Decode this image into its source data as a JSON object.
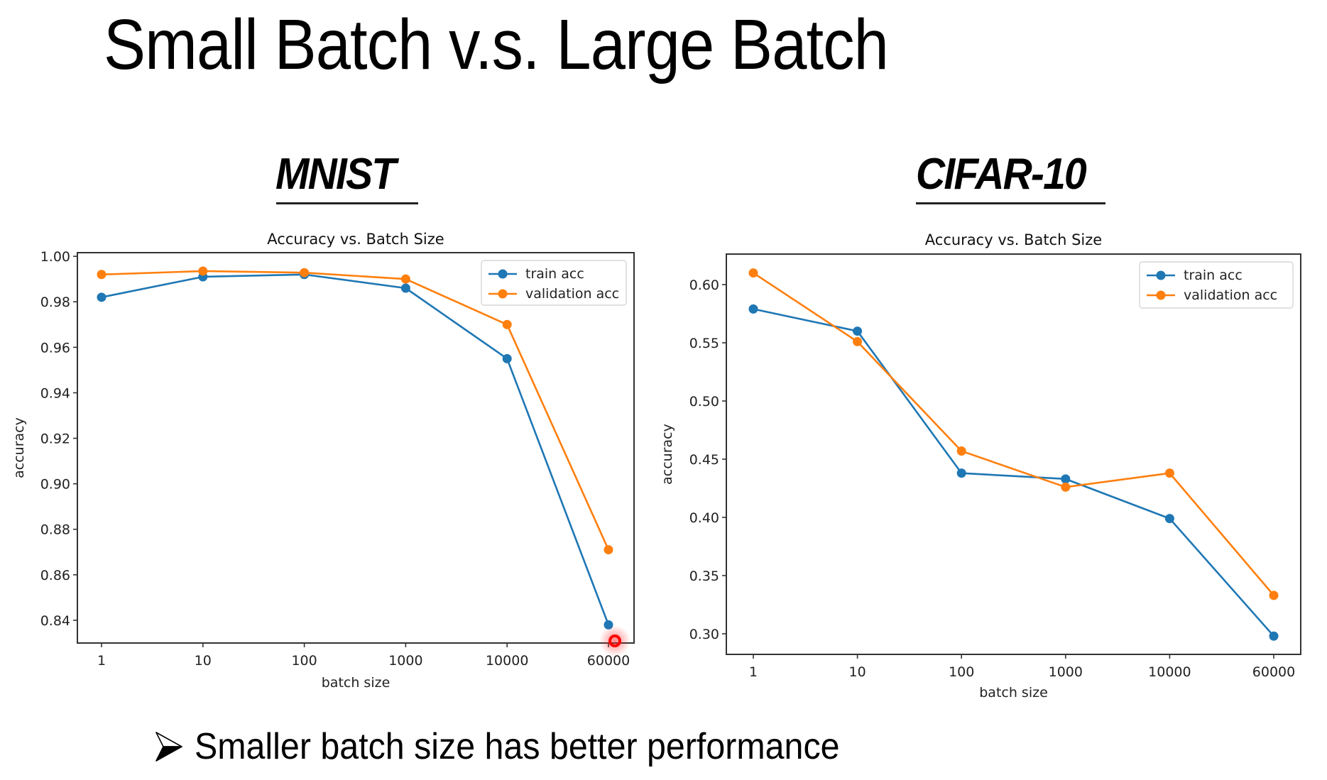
{
  "slide": {
    "title": "Small Batch v.s. Large Batch",
    "bullet": "Smaller batch size has better performance",
    "bullet_icon": "arrow-bullet-icon"
  },
  "headings": {
    "mnist": "MNIST",
    "cifar": "CIFAR-10"
  },
  "colors": {
    "train": "#1f77b4",
    "validation": "#ff7f0e",
    "axis": "#333333",
    "cursor": "#ff0000"
  },
  "chart_data": [
    {
      "type": "line",
      "dataset": "MNIST",
      "title": "Accuracy vs. Batch Size",
      "xlabel": "batch size",
      "ylabel": "accuracy",
      "categories": [
        "1",
        "10",
        "100",
        "1000",
        "10000",
        "60000"
      ],
      "ylim": [
        0.83,
        1.0016
      ],
      "yticks": [
        0.84,
        0.86,
        0.88,
        0.9,
        0.92,
        0.94,
        0.96,
        0.98,
        1.0
      ],
      "ytick_labels": [
        "0.84",
        "0.86",
        "0.88",
        "0.90",
        "0.92",
        "0.94",
        "0.96",
        "0.98",
        "1.00"
      ],
      "legend_position": "upper-right",
      "grid": false,
      "series": [
        {
          "name": "train acc",
          "color": "#1f77b4",
          "values": [
            0.982,
            0.991,
            0.992,
            0.986,
            0.955,
            0.838
          ]
        },
        {
          "name": "validation acc",
          "color": "#ff7f0e",
          "values": [
            0.992,
            0.9935,
            0.9928,
            0.99,
            0.97,
            0.871
          ]
        }
      ]
    },
    {
      "type": "line",
      "dataset": "CIFAR-10",
      "title": "Accuracy vs. Batch Size",
      "xlabel": "batch size",
      "ylabel": "accuracy",
      "categories": [
        "1",
        "10",
        "100",
        "1000",
        "10000",
        "60000"
      ],
      "ylim": [
        0.2823,
        0.6262
      ],
      "yticks": [
        0.3,
        0.35,
        0.4,
        0.45,
        0.5,
        0.55,
        0.6
      ],
      "ytick_labels": [
        "0.30",
        "0.35",
        "0.40",
        "0.45",
        "0.50",
        "0.55",
        "0.60"
      ],
      "legend_position": "upper-right",
      "grid": false,
      "series": [
        {
          "name": "train acc",
          "color": "#1f77b4",
          "values": [
            0.579,
            0.56,
            0.438,
            0.433,
            0.399,
            0.298
          ]
        },
        {
          "name": "validation acc",
          "color": "#ff7f0e",
          "values": [
            0.61,
            0.551,
            0.457,
            0.426,
            0.438,
            0.333
          ]
        }
      ]
    }
  ]
}
